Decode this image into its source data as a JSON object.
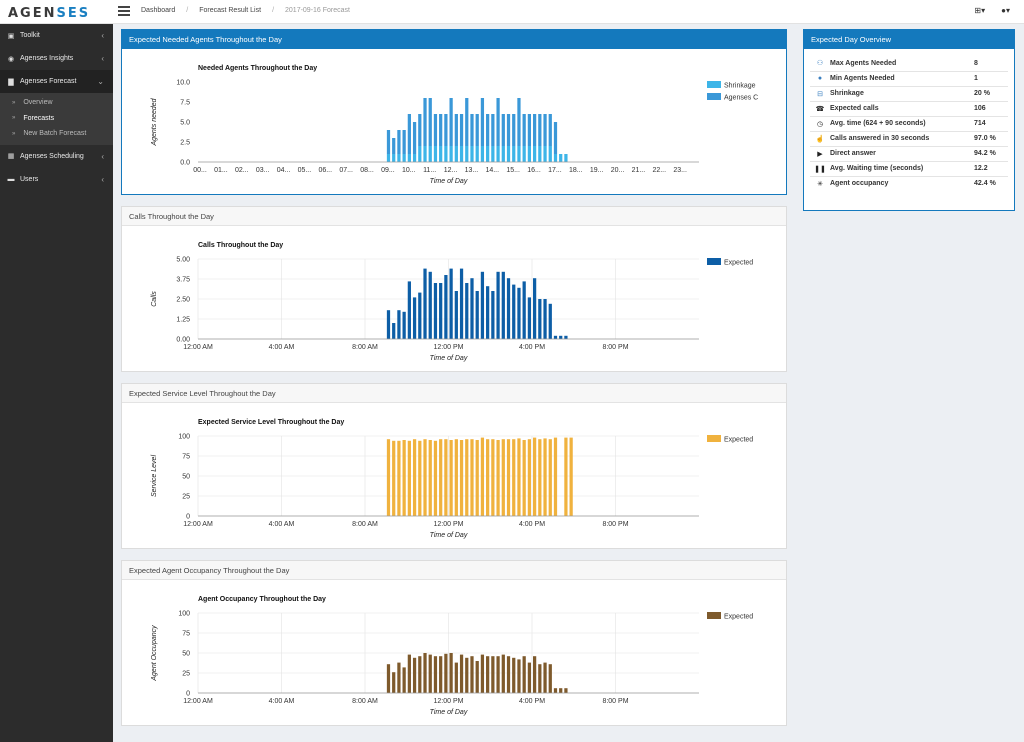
{
  "brand": {
    "part1": "AGEN",
    "part2": "SES"
  },
  "breadcrumb": [
    "Dashboard",
    "Forecast Result List",
    "2017-09-16 Forecast"
  ],
  "topbar": {
    "add_icon": "plus-square-icon",
    "user_icon": "user-icon"
  },
  "sidebar": {
    "items": [
      {
        "label": "Toolkit",
        "icon": "briefcase-icon"
      },
      {
        "label": "Agenses Insights",
        "icon": "eye-icon"
      },
      {
        "label": "Agenses Forecast",
        "icon": "chart-icon"
      },
      {
        "label": "Agenses Scheduling",
        "icon": "calendar-icon"
      },
      {
        "label": "Users",
        "icon": "folder-icon"
      }
    ],
    "forecast_sub": [
      "Overview",
      "Forecasts",
      "New Batch Forecast"
    ]
  },
  "panels": {
    "agents": "Expected Needed Agents Throughout the Day",
    "calls": "Calls Throughout the Day",
    "service": "Expected Service Level Throughout the Day",
    "occupancy": "Expected Agent Occupancy Throughout the Day",
    "overview": "Expected Day Overview"
  },
  "overview": [
    {
      "icon": "users-icon",
      "label": "Max Agents Needed",
      "value": "8"
    },
    {
      "icon": "user-icon",
      "label": "Min Agents Needed",
      "value": "1"
    },
    {
      "icon": "minus-square-icon",
      "label": "Shrinkage",
      "value": "20 %"
    },
    {
      "icon": "phone-icon",
      "label": "Expected calls",
      "value": "106"
    },
    {
      "icon": "clock-icon",
      "label": "Avg. time (624 + 90 seconds)",
      "value": "714"
    },
    {
      "icon": "thumbs-up-icon",
      "label": "Calls answered in 30 seconds",
      "value": "97.0 %"
    },
    {
      "icon": "play-icon",
      "label": "Direct answer",
      "value": "94.2 %"
    },
    {
      "icon": "pause-icon",
      "label": "Avg. Waiting time (seconds)",
      "value": "12.2"
    },
    {
      "icon": "spinner-icon",
      "label": "Agent occupancy",
      "value": "42.4 %"
    }
  ],
  "chart_data": [
    {
      "type": "bar",
      "title": "Needed Agents Throughout the Day",
      "xlabel": "Time of Day",
      "ylabel": "Agents needed",
      "ylim": [
        0,
        10
      ],
      "yticks": [
        "0.0",
        "2.5",
        "5.0",
        "7.5",
        "10.0"
      ],
      "xticks": [
        "00...",
        "01...",
        "02...",
        "03...",
        "04...",
        "05...",
        "06...",
        "07...",
        "08...",
        "09...",
        "10...",
        "11...",
        "12...",
        "13...",
        "14...",
        "15...",
        "16...",
        "17...",
        "18...",
        "19...",
        "20...",
        "21...",
        "22...",
        "23..."
      ],
      "grid": false,
      "stacked": true,
      "legend": "top-right",
      "colors": [
        "#3db5e8",
        "#3a98d8"
      ],
      "series": [
        {
          "name": "Shrinkage",
          "values": [
            0,
            0,
            0,
            0,
            0,
            0,
            0,
            0,
            0,
            0,
            0,
            0,
            0,
            0,
            0,
            0,
            0,
            0,
            0,
            0,
            0,
            0,
            0,
            0,
            0,
            0,
            0,
            0,
            0,
            0,
            0,
            0,
            0,
            0,
            0,
            0,
            1,
            1,
            1,
            1,
            1,
            1,
            2,
            2,
            2,
            2,
            2,
            2,
            2,
            2,
            2,
            2,
            2,
            2,
            2,
            2,
            2,
            2,
            2,
            2,
            2,
            2,
            2,
            2,
            2,
            2,
            2,
            2,
            1,
            1,
            1,
            0,
            0,
            0,
            0,
            0,
            0,
            0,
            0,
            0,
            0,
            0,
            0,
            0,
            0,
            0,
            0,
            0,
            0,
            0,
            0,
            0,
            0,
            0,
            0,
            0
          ]
        },
        {
          "name": "Agenses C",
          "values": [
            0,
            0,
            0,
            0,
            0,
            0,
            0,
            0,
            0,
            0,
            0,
            0,
            0,
            0,
            0,
            0,
            0,
            0,
            0,
            0,
            0,
            0,
            0,
            0,
            0,
            0,
            0,
            0,
            0,
            0,
            0,
            0,
            0,
            0,
            0,
            0,
            3,
            2,
            3,
            3,
            5,
            4,
            4,
            6,
            6,
            4,
            4,
            4,
            6,
            4,
            4,
            6,
            4,
            4,
            6,
            4,
            4,
            6,
            4,
            4,
            4,
            6,
            4,
            4,
            4,
            4,
            4,
            4,
            4,
            0,
            0,
            0,
            0,
            0,
            0,
            0,
            0,
            0,
            0,
            0,
            0,
            0,
            0,
            0,
            0,
            0,
            0,
            0,
            0,
            0,
            0,
            0,
            0,
            0,
            0,
            0
          ]
        }
      ]
    },
    {
      "type": "bar",
      "title": "Calls Throughout the Day",
      "xlabel": "Time of Day",
      "ylabel": "Calls",
      "ylim": [
        0,
        5
      ],
      "yticks": [
        "0.00",
        "1.25",
        "2.50",
        "3.75",
        "5.00"
      ],
      "xticks": [
        "12:00 AM",
        "4:00 AM",
        "8:00 AM",
        "12:00 PM",
        "4:00 PM",
        "8:00 PM"
      ],
      "grid": true,
      "legend": "top-right",
      "colors": [
        "#0d5ea6"
      ],
      "series": [
        {
          "name": "Expected",
          "values": [
            0,
            0,
            0,
            0,
            0,
            0,
            0,
            0,
            0,
            0,
            0,
            0,
            0,
            0,
            0,
            0,
            0,
            0,
            0,
            0,
            0,
            0,
            0,
            0,
            0,
            0,
            0,
            0,
            0,
            0,
            0,
            0,
            0,
            0,
            0,
            0,
            1.8,
            1.0,
            1.8,
            1.7,
            3.6,
            2.6,
            2.9,
            4.4,
            4.2,
            3.5,
            3.5,
            4.0,
            4.4,
            3.0,
            4.4,
            3.5,
            3.8,
            3.0,
            4.2,
            3.3,
            3.0,
            4.2,
            4.2,
            3.8,
            3.4,
            3.2,
            3.6,
            2.6,
            3.8,
            2.5,
            2.5,
            2.2,
            0.2,
            0.2,
            0.2,
            0,
            0,
            0,
            0,
            0,
            0,
            0,
            0,
            0,
            0,
            0,
            0,
            0,
            0,
            0,
            0,
            0,
            0,
            0,
            0,
            0,
            0,
            0,
            0,
            0
          ]
        }
      ]
    },
    {
      "type": "bar",
      "title": "Expected Service Level Throughout the Day",
      "xlabel": "Time of Day",
      "ylabel": "Service Level",
      "ylim": [
        0,
        100
      ],
      "yticks": [
        "0",
        "25",
        "50",
        "75",
        "100"
      ],
      "xticks": [
        "12:00 AM",
        "4:00 AM",
        "8:00 AM",
        "12:00 PM",
        "4:00 PM",
        "8:00 PM"
      ],
      "grid": true,
      "legend": "top-right",
      "colors": [
        "#f0b23e"
      ],
      "series": [
        {
          "name": "Expected",
          "values": [
            0,
            0,
            0,
            0,
            0,
            0,
            0,
            0,
            0,
            0,
            0,
            0,
            0,
            0,
            0,
            0,
            0,
            0,
            0,
            0,
            0,
            0,
            0,
            0,
            0,
            0,
            0,
            0,
            0,
            0,
            0,
            0,
            0,
            0,
            0,
            0,
            96,
            94,
            94,
            95,
            94,
            96,
            94,
            96,
            95,
            94,
            96,
            96,
            95,
            96,
            95,
            96,
            96,
            95,
            98,
            96,
            96,
            95,
            96,
            96,
            96,
            97,
            95,
            96,
            98,
            96,
            97,
            96,
            98,
            0,
            98,
            98,
            0,
            0,
            0,
            0,
            0,
            0,
            0,
            0,
            0,
            0,
            0,
            0,
            0,
            0,
            0,
            0,
            0,
            0,
            0,
            0,
            0,
            0,
            0,
            0
          ]
        }
      ]
    },
    {
      "type": "bar",
      "title": "Agent Occupancy Throughout the Day",
      "xlabel": "Time of Day",
      "ylabel": "Agent Occupancy",
      "ylim": [
        0,
        100
      ],
      "yticks": [
        "0",
        "25",
        "50",
        "75",
        "100"
      ],
      "xticks": [
        "12:00 AM",
        "4:00 AM",
        "8:00 AM",
        "12:00 PM",
        "4:00 PM",
        "8:00 PM"
      ],
      "grid": true,
      "legend": "top-right",
      "colors": [
        "#7e5a2c"
      ],
      "series": [
        {
          "name": "Expected",
          "values": [
            0,
            0,
            0,
            0,
            0,
            0,
            0,
            0,
            0,
            0,
            0,
            0,
            0,
            0,
            0,
            0,
            0,
            0,
            0,
            0,
            0,
            0,
            0,
            0,
            0,
            0,
            0,
            0,
            0,
            0,
            0,
            0,
            0,
            0,
            0,
            0,
            36,
            26,
            38,
            32,
            48,
            44,
            46,
            50,
            48,
            46,
            46,
            49,
            50,
            38,
            48,
            44,
            46,
            40,
            48,
            46,
            46,
            46,
            48,
            46,
            44,
            42,
            46,
            38,
            46,
            36,
            38,
            36,
            6,
            6,
            6,
            0,
            0,
            0,
            0,
            0,
            0,
            0,
            0,
            0,
            0,
            0,
            0,
            0,
            0,
            0,
            0,
            0,
            0,
            0,
            0,
            0,
            0,
            0,
            0,
            0
          ]
        }
      ]
    }
  ]
}
